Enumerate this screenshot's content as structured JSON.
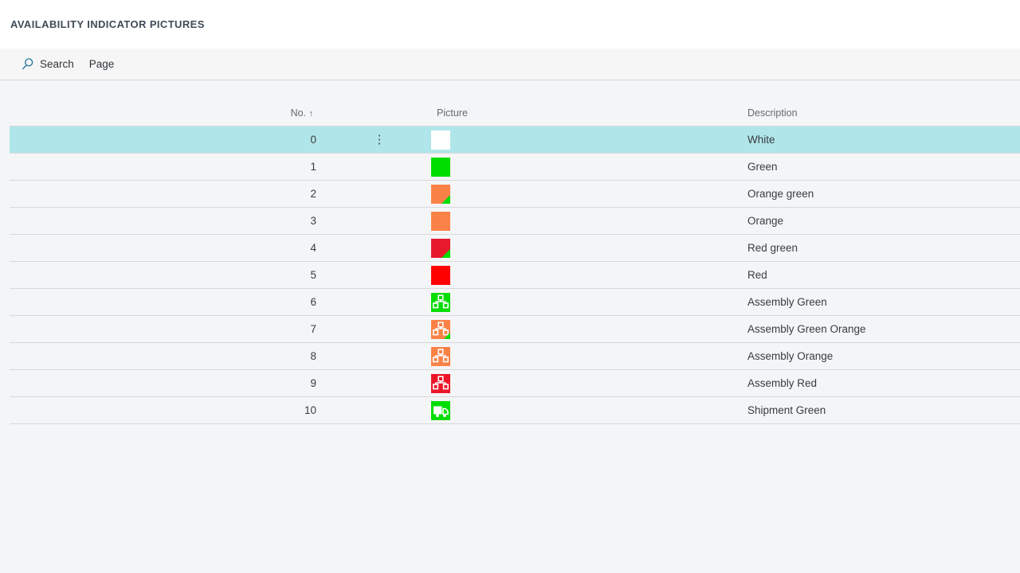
{
  "page": {
    "title": "AVAILABILITY INDICATOR PICTURES"
  },
  "toolbar": {
    "search_label": "Search",
    "page_label": "Page"
  },
  "table": {
    "columns": {
      "no": "No.",
      "sort_arrow": "↑",
      "picture": "Picture",
      "description": "Description"
    },
    "row_menu_glyph": "⋮",
    "rows": [
      {
        "no": "0",
        "description": "White",
        "selected": true,
        "picture": {
          "icon": "solid",
          "color": "#ffffff"
        }
      },
      {
        "no": "1",
        "description": "Green",
        "selected": false,
        "picture": {
          "icon": "solid",
          "color": "#00dd00"
        }
      },
      {
        "no": "2",
        "description": "Orange green",
        "selected": false,
        "picture": {
          "icon": "solid",
          "color": "#fb8246",
          "corner": {
            "color": "#00dd00",
            "size": 11
          }
        }
      },
      {
        "no": "3",
        "description": "Orange",
        "selected": false,
        "picture": {
          "icon": "solid",
          "color": "#fb8246"
        }
      },
      {
        "no": "4",
        "description": "Red green",
        "selected": false,
        "picture": {
          "icon": "solid",
          "color": "#e8192d",
          "corner": {
            "color": "#00dd00",
            "size": 11
          }
        }
      },
      {
        "no": "5",
        "description": "Red",
        "selected": false,
        "picture": {
          "icon": "solid",
          "color": "#fe0000"
        }
      },
      {
        "no": "6",
        "description": "Assembly Green",
        "selected": false,
        "picture": {
          "icon": "assembly",
          "color": "#00dd00"
        }
      },
      {
        "no": "7",
        "description": "Assembly Green Orange",
        "selected": false,
        "picture": {
          "icon": "assembly",
          "color": "#fb8246",
          "corner": {
            "color": "#00dd00",
            "size": 8
          }
        }
      },
      {
        "no": "8",
        "description": "Assembly Orange",
        "selected": false,
        "picture": {
          "icon": "assembly",
          "color": "#fb8246"
        }
      },
      {
        "no": "9",
        "description": "Assembly Red",
        "selected": false,
        "picture": {
          "icon": "assembly",
          "color": "#ed1528"
        }
      },
      {
        "no": "10",
        "description": "Shipment Green",
        "selected": false,
        "picture": {
          "icon": "truck",
          "color": "#00dd00"
        }
      }
    ]
  },
  "colors": {
    "selected_row": "#b0e6e9",
    "search_icon": "#2a7f9f"
  }
}
